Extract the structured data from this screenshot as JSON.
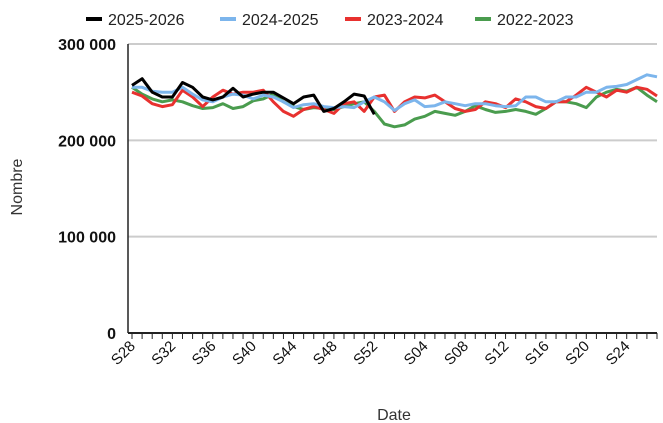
{
  "chart_data": {
    "type": "line",
    "xlabel": "Date",
    "ylabel": "Nombre",
    "ylim": [
      0,
      300000
    ],
    "y_ticks": [
      {
        "value": 0,
        "label": "0"
      },
      {
        "value": 100000,
        "label": "100 000"
      },
      {
        "value": 200000,
        "label": "200 000"
      },
      {
        "value": 300000,
        "label": "300 000"
      }
    ],
    "grid": "horizontal",
    "legend_position": "top",
    "x": [
      "S28",
      "S29",
      "S30",
      "S31",
      "S32",
      "S33",
      "S34",
      "S35",
      "S36",
      "S37",
      "S38",
      "S39",
      "S40",
      "S41",
      "S42",
      "S43",
      "S44",
      "S45",
      "S46",
      "S47",
      "S48",
      "S49",
      "S50",
      "S51",
      "S52",
      "S53",
      "S01",
      "S02",
      "S03",
      "S04",
      "S05",
      "S06",
      "S07",
      "S08",
      "S09",
      "S10",
      "S11",
      "S12",
      "S13",
      "S14",
      "S15",
      "S16",
      "S17",
      "S18",
      "S19",
      "S20",
      "S21",
      "S22",
      "S23",
      "S24",
      "S25",
      "S26",
      "S27"
    ],
    "x_tick_labels": [
      "S28",
      "S32",
      "S36",
      "S40",
      "S44",
      "S48",
      "S52",
      "S04",
      "S08",
      "S12",
      "S16",
      "S20",
      "S24"
    ],
    "series": [
      {
        "name": "2025-2026",
        "color": "#000000",
        "values": [
          257000,
          264000,
          250000,
          245000,
          245000,
          260000,
          255000,
          245000,
          242000,
          245000,
          254000,
          245000,
          248000,
          250000,
          250000,
          244000,
          238000,
          245000,
          247000,
          230000,
          233000,
          240000,
          248000,
          246000,
          227000,
          null,
          null,
          null,
          null,
          null,
          null,
          null,
          null,
          null,
          null,
          null,
          null,
          null,
          null,
          null,
          null,
          null,
          null,
          null,
          null,
          null,
          null,
          null,
          null,
          null,
          null,
          null,
          null
        ]
      },
      {
        "name": "2024-2025",
        "color": "#7cb5ec",
        "values": [
          255000,
          255000,
          251000,
          250000,
          250000,
          255000,
          248000,
          242000,
          240000,
          245000,
          248000,
          247000,
          243000,
          247000,
          245000,
          240000,
          234000,
          237000,
          238000,
          235000,
          234000,
          235000,
          234000,
          240000,
          245000,
          240000,
          231000,
          238000,
          242000,
          235000,
          236000,
          240000,
          238000,
          236000,
          238000,
          238000,
          236000,
          235000,
          236000,
          245000,
          245000,
          240000,
          240000,
          245000,
          245000,
          250000,
          250000,
          255000,
          256000,
          258000,
          263000,
          268000,
          266000
        ]
      },
      {
        "name": "2023-2024",
        "color": "#e8312f",
        "values": [
          250000,
          246000,
          238000,
          235000,
          237000,
          252000,
          245000,
          235000,
          245000,
          252000,
          248000,
          250000,
          250000,
          252000,
          240000,
          230000,
          225000,
          232000,
          235000,
          232000,
          228000,
          238000,
          240000,
          230000,
          245000,
          247000,
          230000,
          240000,
          245000,
          244000,
          247000,
          240000,
          233000,
          230000,
          232000,
          240000,
          238000,
          234000,
          243000,
          240000,
          235000,
          233000,
          240000,
          240000,
          247000,
          255000,
          250000,
          245000,
          252000,
          250000,
          255000,
          253000,
          246000
        ]
      },
      {
        "name": "2022-2023",
        "color": "#4a9c4e",
        "values": [
          255000,
          248000,
          243000,
          240000,
          242000,
          240000,
          236000,
          233000,
          234000,
          238000,
          233000,
          235000,
          241000,
          243000,
          248000,
          240000,
          235000,
          232000,
          234000,
          233000,
          232000,
          235000,
          238000,
          240000,
          230000,
          217000,
          214000,
          216000,
          222000,
          225000,
          230000,
          228000,
          226000,
          230000,
          236000,
          232000,
          229000,
          230000,
          232000,
          230000,
          227000,
          233000,
          240000,
          240000,
          238000,
          234000,
          245000,
          250000,
          253000,
          251000,
          255000,
          247000,
          240000
        ]
      }
    ]
  }
}
